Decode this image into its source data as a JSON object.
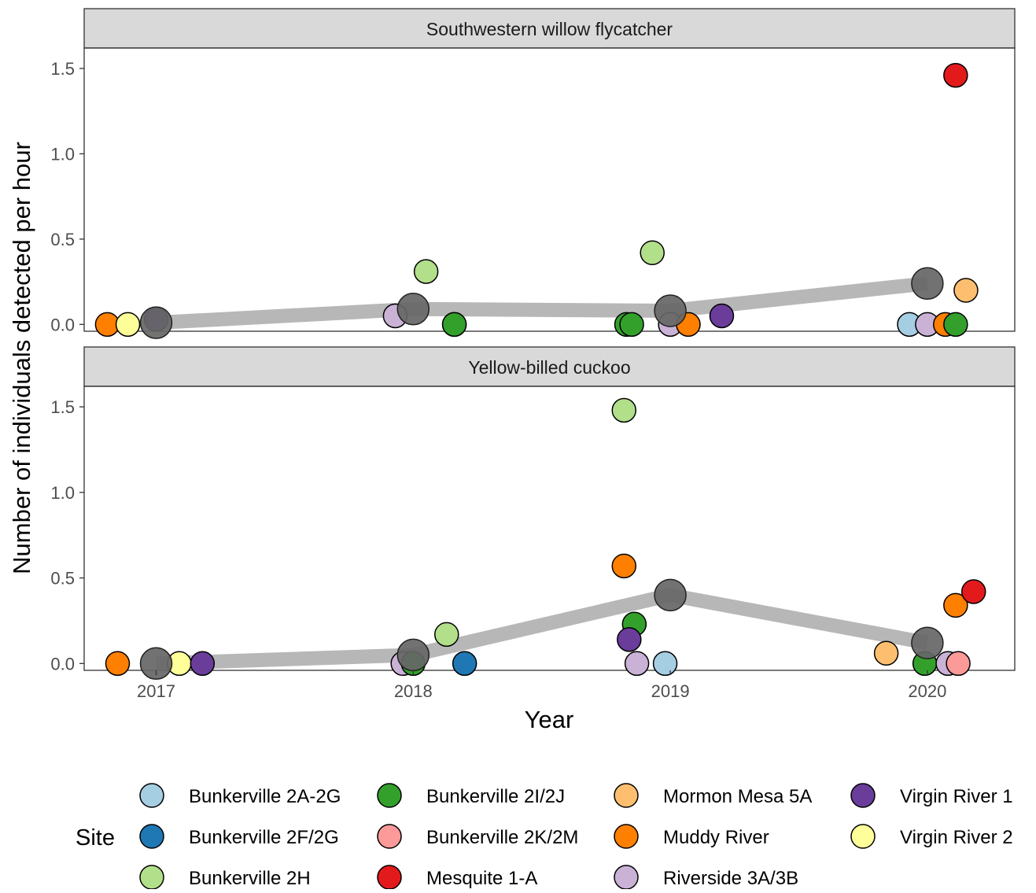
{
  "chart_data": {
    "type": "scatter",
    "ylabel": "Number of individuals detected per hour",
    "xlabel": "Year",
    "x_ticks": [
      "2017",
      "2018",
      "2019",
      "2020"
    ],
    "y_ticks": [
      "0.0",
      "0.5",
      "1.0",
      "1.5"
    ],
    "ylim": [
      -0.04,
      1.62
    ],
    "xlim": [
      2016.72,
      2020.34
    ],
    "grid": false,
    "mean_line_color": "#b3b3b3",
    "mean_point_color": "#666666",
    "legend": {
      "title": "Site",
      "position": "bottom",
      "entries": [
        {
          "name": "Bunkerville 2A-2G",
          "color": "#a6cee3"
        },
        {
          "name": "Bunkerville 2F/2G",
          "color": "#1f78b4"
        },
        {
          "name": "Bunkerville 2H",
          "color": "#b2df8a"
        },
        {
          "name": "Bunkerville 2I/2J",
          "color": "#33a02c"
        },
        {
          "name": "Bunkerville 2K/2M",
          "color": "#fb9a99"
        },
        {
          "name": "Mesquite 1-A",
          "color": "#e31a1c"
        },
        {
          "name": "Mormon Mesa 5A",
          "color": "#fdbf6f"
        },
        {
          "name": "Muddy River",
          "color": "#ff7f00"
        },
        {
          "name": "Riverside 3A/3B",
          "color": "#cab2d6"
        },
        {
          "name": "Virgin River 1",
          "color": "#6a3d9a"
        },
        {
          "name": "Virgin River 2",
          "color": "#ffff99"
        }
      ]
    },
    "panels": [
      {
        "title": "Southwestern willow flycatcher",
        "mean_series": [
          {
            "x": 2017,
            "y": 0.01
          },
          {
            "x": 2018,
            "y": 0.09
          },
          {
            "x": 2019,
            "y": 0.08
          },
          {
            "x": 2020,
            "y": 0.24
          }
        ],
        "points": [
          {
            "site": "Muddy River",
            "x": 2016.81,
            "y": 0.0
          },
          {
            "site": "Virgin River 2",
            "x": 2016.89,
            "y": 0.0
          },
          {
            "site": "Virgin River 1",
            "x": 2017.0,
            "y": 0.03
          },
          {
            "site": "Riverside 3A/3B",
            "x": 2017.93,
            "y": 0.05
          },
          {
            "site": "Bunkerville 2H",
            "x": 2018.05,
            "y": 0.31
          },
          {
            "site": "Bunkerville 2F/2G",
            "x": 2018.16,
            "y": 0.0
          },
          {
            "site": "Bunkerville 2I/2J",
            "x": 2018.16,
            "y": 0.0
          },
          {
            "site": "Bunkerville 2I/2J",
            "x": 2018.83,
            "y": 0.0
          },
          {
            "site": "Bunkerville 2I/2J",
            "x": 2018.85,
            "y": 0.0
          },
          {
            "site": "Bunkerville 2H",
            "x": 2018.93,
            "y": 0.42
          },
          {
            "site": "Riverside 3A/3B",
            "x": 2019.0,
            "y": 0.0
          },
          {
            "site": "Muddy River",
            "x": 2019.07,
            "y": 0.0
          },
          {
            "site": "Virgin River 1",
            "x": 2019.2,
            "y": 0.05
          },
          {
            "site": "Bunkerville 2A-2G",
            "x": 2019.93,
            "y": 0.0
          },
          {
            "site": "Riverside 3A/3B",
            "x": 2020.0,
            "y": 0.0
          },
          {
            "site": "Muddy River",
            "x": 2020.07,
            "y": 0.0
          },
          {
            "site": "Bunkerville 2I/2J",
            "x": 2020.11,
            "y": 0.0
          },
          {
            "site": "Mesquite 1-A",
            "x": 2020.11,
            "y": 1.46
          },
          {
            "site": "Mormon Mesa 5A",
            "x": 2020.15,
            "y": 0.2
          }
        ]
      },
      {
        "title": "Yellow-billed cuckoo",
        "mean_series": [
          {
            "x": 2017,
            "y": 0.0
          },
          {
            "x": 2018,
            "y": 0.05
          },
          {
            "x": 2019,
            "y": 0.4
          },
          {
            "x": 2020,
            "y": 0.12
          }
        ],
        "points": [
          {
            "site": "Muddy River",
            "x": 2016.85,
            "y": 0.0
          },
          {
            "site": "Virgin River 2",
            "x": 2017.09,
            "y": 0.0
          },
          {
            "site": "Virgin River 1",
            "x": 2017.18,
            "y": 0.0
          },
          {
            "site": "Riverside 3A/3B",
            "x": 2017.96,
            "y": 0.0
          },
          {
            "site": "Bunkerville 2I/2J",
            "x": 2018.0,
            "y": 0.0
          },
          {
            "site": "Bunkerville 2H",
            "x": 2018.13,
            "y": 0.17
          },
          {
            "site": "Bunkerville 2F/2G",
            "x": 2018.2,
            "y": 0.0
          },
          {
            "site": "Bunkerville 2H",
            "x": 2018.82,
            "y": 1.48
          },
          {
            "site": "Muddy River",
            "x": 2018.82,
            "y": 0.57
          },
          {
            "site": "Bunkerville 2I/2J",
            "x": 2018.86,
            "y": 0.23
          },
          {
            "site": "Virgin River 1",
            "x": 2018.84,
            "y": 0.14
          },
          {
            "site": "Riverside 3A/3B",
            "x": 2018.87,
            "y": 0.0
          },
          {
            "site": "Bunkerville 2A-2G",
            "x": 2018.98,
            "y": 0.0
          },
          {
            "site": "Mormon Mesa 5A",
            "x": 2019.84,
            "y": 0.06
          },
          {
            "site": "Bunkerville 2I/2J",
            "x": 2019.99,
            "y": 0.0
          },
          {
            "site": "Riverside 3A/3B",
            "x": 2020.08,
            "y": 0.0
          },
          {
            "site": "Bunkerville 2K/2M",
            "x": 2020.12,
            "y": 0.0
          },
          {
            "site": "Muddy River",
            "x": 2020.11,
            "y": 0.34
          },
          {
            "site": "Mesquite 1-A",
            "x": 2020.18,
            "y": 0.42
          }
        ]
      }
    ]
  }
}
